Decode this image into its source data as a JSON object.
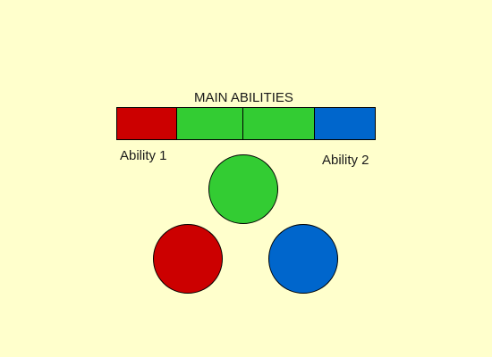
{
  "title": "MAIN ABILITIES",
  "abilities": {
    "ability1_label": "Ability 1",
    "ability2_label": "Ability 2"
  },
  "colors": {
    "background": "#ffffcc",
    "red": "#cc0000",
    "green": "#33cc33",
    "blue": "#0066cc"
  },
  "bar_segments": [
    {
      "color": "red"
    },
    {
      "color": "green"
    },
    {
      "color": "green"
    },
    {
      "color": "blue"
    }
  ],
  "orbs": [
    {
      "color": "green"
    },
    {
      "color": "red"
    },
    {
      "color": "blue"
    }
  ]
}
